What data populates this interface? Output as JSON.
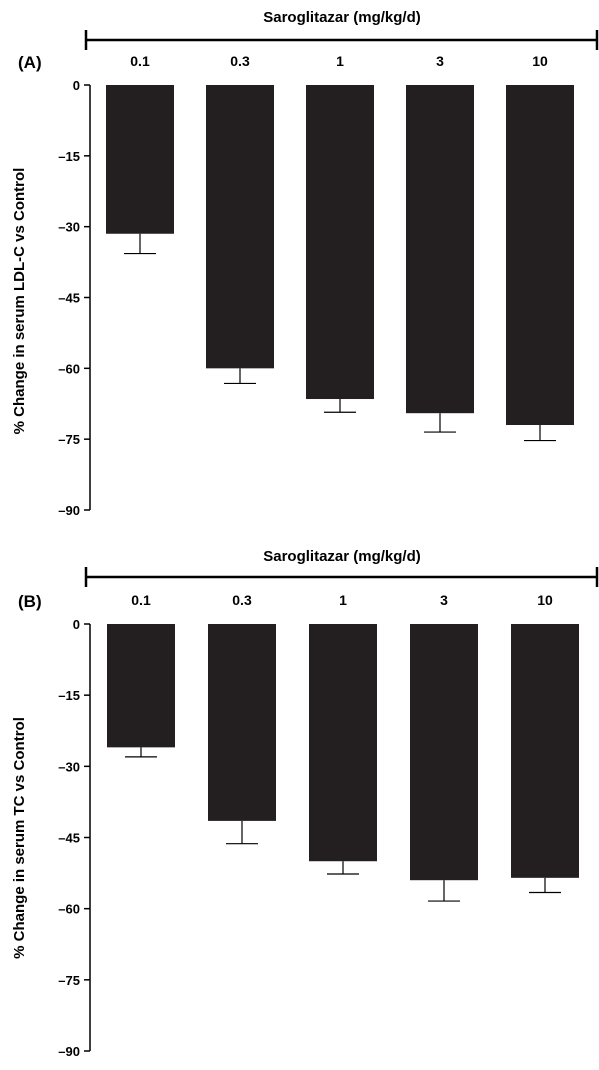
{
  "chart_data": [
    {
      "type": "bar",
      "panel_label": "(A)",
      "top_axis_title": "Saroglitazar (mg/kg/d)",
      "categories": [
        "0.1",
        "0.3",
        "1",
        "3",
        "10"
      ],
      "values": [
        -31.5,
        -60,
        -66.5,
        -69.5,
        -72
      ],
      "errors": [
        4.2,
        3.2,
        2.8,
        4.0,
        3.3
      ],
      "ylabel": "% Change in serum LDL-C vs Control",
      "ylim": [
        -90,
        0
      ],
      "yticks": [
        "0",
        "–15",
        "–30",
        "–45",
        "–60",
        "–75",
        "–90"
      ],
      "ytick_values": [
        0,
        -15,
        -30,
        -45,
        -60,
        -75,
        -90
      ],
      "bar_color": "#231f20",
      "grid": false
    },
    {
      "type": "bar",
      "panel_label": "(B)",
      "top_axis_title": "Saroglitazar (mg/kg/d)",
      "categories": [
        "0.1",
        "0.3",
        "1",
        "3",
        "10"
      ],
      "values": [
        -26,
        -41.5,
        -50,
        -54,
        -53.5
      ],
      "errors": [
        2.0,
        4.8,
        2.7,
        4.4,
        3.1
      ],
      "ylabel": "% Change in serum TC vs Control",
      "ylim": [
        -90,
        0
      ],
      "yticks": [
        "0",
        "–15",
        "–30",
        "–45",
        "–60",
        "–75",
        "–90"
      ],
      "ytick_values": [
        0,
        -15,
        -30,
        -45,
        -60,
        -75,
        -90
      ],
      "bar_color": "#231f20",
      "grid": false
    }
  ]
}
